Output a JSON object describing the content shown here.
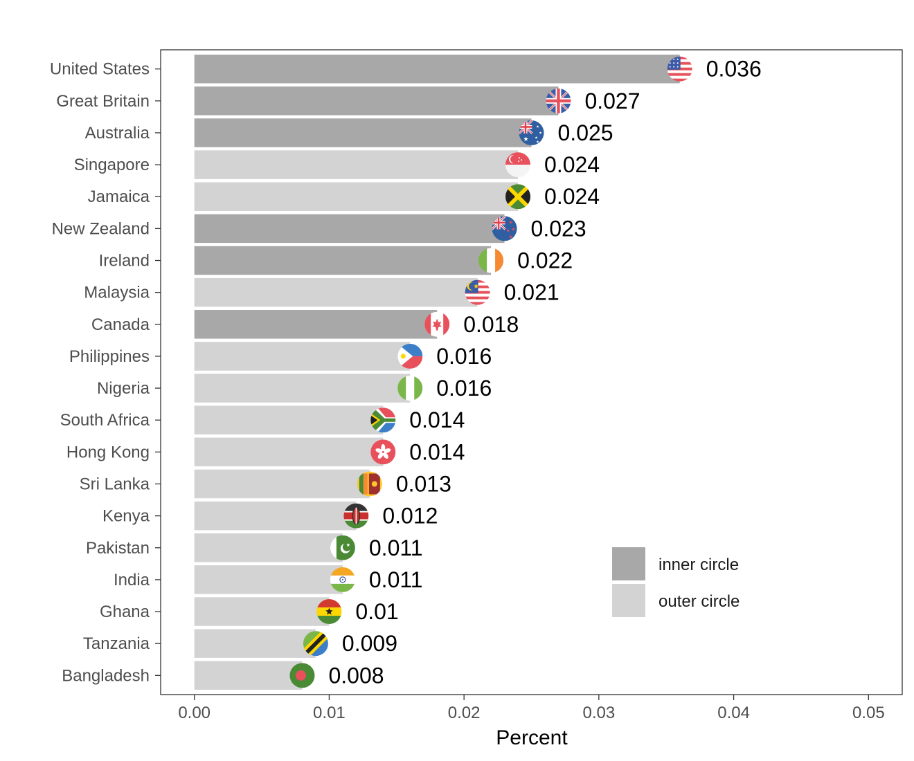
{
  "chart_data": {
    "type": "bar",
    "orientation": "horizontal",
    "title": "",
    "xlabel": "Percent",
    "ylabel": "",
    "xlim": [
      -0.0025,
      0.0525
    ],
    "xticks": [
      0.0,
      0.01,
      0.02,
      0.03,
      0.04,
      0.05
    ],
    "xtick_labels": [
      "0.00",
      "0.01",
      "0.02",
      "0.03",
      "0.04",
      "0.05"
    ],
    "grid": false,
    "legend_position": "bottom-right inside",
    "categories": [
      "United States",
      "Great Britain",
      "Australia",
      "Singapore",
      "Jamaica",
      "New Zealand",
      "Ireland",
      "Malaysia",
      "Canada",
      "Philippines",
      "Nigeria",
      "South Africa",
      "Hong Kong",
      "Sri Lanka",
      "Kenya",
      "Pakistan",
      "India",
      "Ghana",
      "Tanzania",
      "Bangladesh"
    ],
    "values": [
      0.036,
      0.027,
      0.025,
      0.024,
      0.024,
      0.023,
      0.022,
      0.021,
      0.018,
      0.016,
      0.016,
      0.014,
      0.014,
      0.013,
      0.012,
      0.011,
      0.011,
      0.01,
      0.009,
      0.008
    ],
    "value_labels": [
      "0.036",
      "0.027",
      "0.025",
      "0.024",
      "0.024",
      "0.023",
      "0.022",
      "0.021",
      "0.018",
      "0.016",
      "0.016",
      "0.014",
      "0.014",
      "0.013",
      "0.012",
      "0.011",
      "0.011",
      "0.01",
      "0.009",
      "0.008"
    ],
    "group": [
      "inner circle",
      "inner circle",
      "inner circle",
      "outer circle",
      "outer circle",
      "inner circle",
      "inner circle",
      "outer circle",
      "inner circle",
      "outer circle",
      "outer circle",
      "outer circle",
      "outer circle",
      "outer circle",
      "outer circle",
      "outer circle",
      "outer circle",
      "outer circle",
      "outer circle",
      "outer circle"
    ],
    "flag_icons": [
      "flag-united-states-icon",
      "flag-great-britain-icon",
      "flag-australia-icon",
      "flag-singapore-icon",
      "flag-jamaica-icon",
      "flag-new-zealand-icon",
      "flag-ireland-icon",
      "flag-malaysia-icon",
      "flag-canada-icon",
      "flag-philippines-icon",
      "flag-nigeria-icon",
      "flag-south-africa-icon",
      "flag-hong-kong-icon",
      "flag-sri-lanka-icon",
      "flag-kenya-icon",
      "flag-pakistan-icon",
      "flag-india-icon",
      "flag-ghana-icon",
      "flag-tanzania-icon",
      "flag-bangladesh-icon"
    ],
    "legend": [
      {
        "label": "inner circle",
        "color": "#a8a8a8"
      },
      {
        "label": "outer circle",
        "color": "#d3d3d3"
      }
    ],
    "colors": {
      "inner circle": "#a8a8a8",
      "outer circle": "#d3d3d3"
    }
  }
}
